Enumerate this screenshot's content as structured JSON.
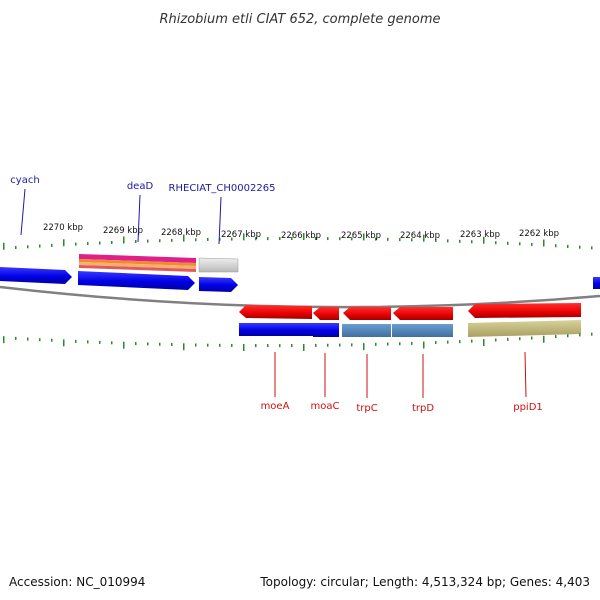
{
  "title": "Rhizobium etli CIAT 652, complete genome",
  "footer": {
    "accession": "Accession: NC_010994",
    "summary": "Topology: circular; Length: 4,513,324 bp; Genes: 4,403"
  },
  "scale": {
    "labels": [
      "2270 kbp",
      "2269 kbp",
      "2268 kbp",
      "2267 kbp",
      "2266 kbp",
      "2265 kbp",
      "2264 kbp",
      "2263 kbp",
      "2262 kbp"
    ]
  },
  "colors": {
    "forward_gene": "#0a0ae0",
    "reverse_gene": "#e00000",
    "top_label": "#1a1aa8",
    "bottom_label": "#cc1111",
    "tick": "#2a8a2a",
    "backbone": "#808080"
  },
  "genes_top": [
    {
      "label": "cyach"
    },
    {
      "label": "deaD"
    },
    {
      "label": "RHECIAT_CH0002265"
    }
  ],
  "genes_bottom": [
    {
      "label": "moeA"
    },
    {
      "label": "moaC"
    },
    {
      "label": "trpC"
    },
    {
      "label": "trpD"
    },
    {
      "label": "ppiD1"
    }
  ]
}
